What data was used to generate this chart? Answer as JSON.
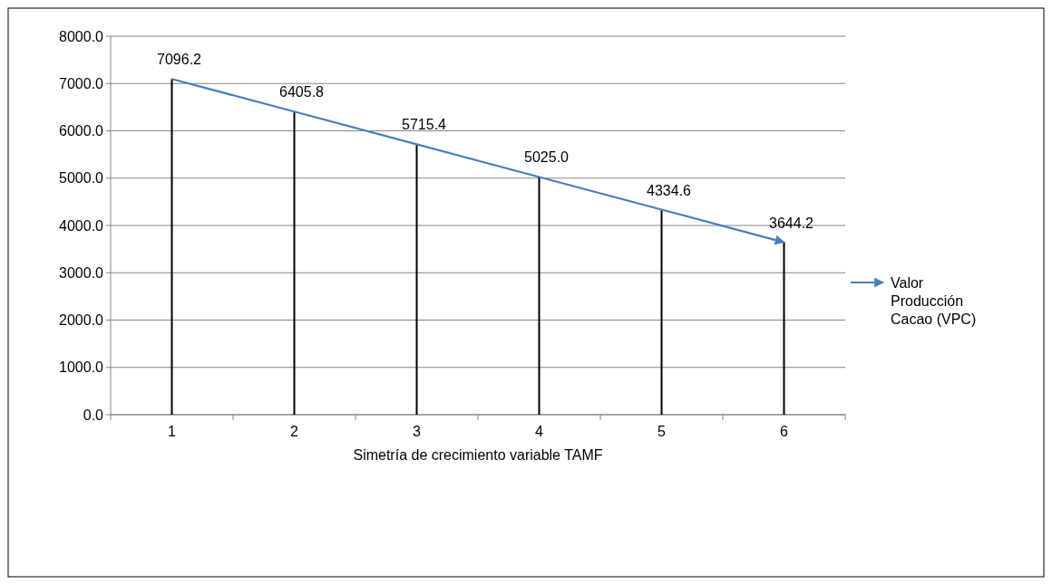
{
  "chart_data": {
    "type": "line",
    "xlabel": "Simetría de crecimiento variable TAMF",
    "categories": [
      "1",
      "2",
      "3",
      "4",
      "5",
      "6"
    ],
    "series": [
      {
        "type": "bar",
        "color": "#000000",
        "values": [
          7096.2,
          6405.8,
          5715.4,
          5025.0,
          4334.6,
          3644.2
        ]
      },
      {
        "name": "Valor Producción Cacao (VPC)",
        "color": "#4a7ebb",
        "marker": "none",
        "values": [
          7096.2,
          6405.8,
          5715.4,
          5025.0,
          4334.6,
          3644.2
        ],
        "value_labels": [
          "7096.2",
          "6405.8",
          "5715.4",
          "5025.0",
          "4334.6",
          "3644.2"
        ]
      }
    ],
    "ylim": [
      0,
      8000
    ],
    "yticks": [
      {
        "value": 0,
        "label": "0.0"
      },
      {
        "value": 1000,
        "label": "1000.0"
      },
      {
        "value": 2000,
        "label": "2000.0"
      },
      {
        "value": 3000,
        "label": "3000.0"
      },
      {
        "value": 4000,
        "label": "4000.0"
      },
      {
        "value": 5000,
        "label": "5000.0"
      },
      {
        "value": 6000,
        "label": "6000.0"
      },
      {
        "value": 7000,
        "label": "7000.0"
      },
      {
        "value": 8000,
        "label": "8000.0"
      }
    ],
    "grid": "y",
    "legend": "right"
  }
}
